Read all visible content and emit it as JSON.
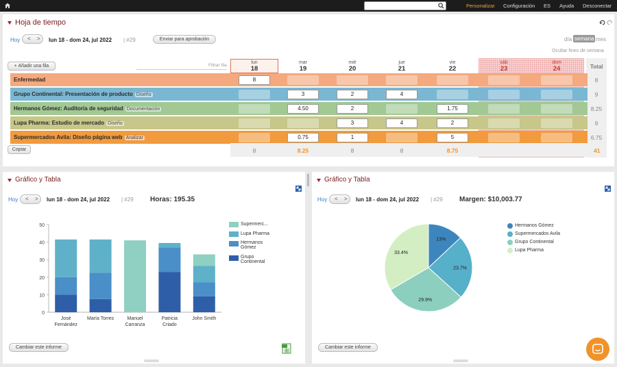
{
  "topbar": {
    "nav": [
      "Personalizar",
      "Configuración",
      "ES",
      "Ayuda",
      "Desconectar"
    ]
  },
  "colors": {
    "accent": "#e8a33d",
    "title": "#7a1b1b",
    "orange": "#f0932a"
  },
  "timesheet": {
    "title": "Hoja de tiempo",
    "today": "Hoy",
    "range": "lun 18 - dom 24, jul 2022",
    "week": "| #29",
    "submit": "Enviar para aprobación",
    "views": [
      "día",
      "semana",
      "mes"
    ],
    "hide_weekends": "Ocultar fines de semana",
    "add_row": "+ Añadir una fila",
    "filter": "Filtrar fila",
    "total_label": "Total",
    "copy": "Copiar",
    "days": [
      {
        "wd": "lun",
        "d": "18"
      },
      {
        "wd": "mar",
        "d": "19"
      },
      {
        "wd": "mié",
        "d": "20"
      },
      {
        "wd": "jue",
        "d": "21"
      },
      {
        "wd": "vie",
        "d": "22"
      },
      {
        "wd": "sáb",
        "d": "23"
      },
      {
        "wd": "dom",
        "d": "24"
      }
    ],
    "rows": [
      {
        "name": "Enfermedad",
        "tag": "",
        "color": "#f4a97e",
        "cells": [
          "8",
          "",
          "",
          "",
          "",
          "",
          ""
        ],
        "total": "8"
      },
      {
        "name": "Grupo Continental: Presentación de producto",
        "tag": "Diseño",
        "color": "#79b7d3",
        "cells": [
          "",
          "3",
          "2",
          "4",
          "",
          "",
          ""
        ],
        "total": "9"
      },
      {
        "name": "Hermanos Gómez: Auditoría de seguridad",
        "tag": "Documentación",
        "color": "#a2c894",
        "cells": [
          "",
          "4.50",
          "2",
          "",
          "1.75",
          "",
          ""
        ],
        "total": "8.25"
      },
      {
        "name": "Lupa Pharma: Estudio de mercado",
        "tag": "Diseño",
        "color": "#c6c788",
        "cells": [
          "",
          "",
          "3",
          "4",
          "2",
          "",
          ""
        ],
        "total": "9"
      },
      {
        "name": "Supermercados Avila: Diseño página web",
        "tag": "Analizar",
        "color": "#f19a3e",
        "cells": [
          "",
          "0.75",
          "1",
          "",
          "5",
          "",
          ""
        ],
        "total": "6.75"
      }
    ],
    "col_totals": [
      "8",
      "8.25",
      "8",
      "8",
      "8.75",
      "",
      ""
    ],
    "grand_total": "41"
  },
  "chart1": {
    "title": "Gráfico y Tabla",
    "today": "Hoy",
    "range": "lun 18 - dom 24, jul 2022",
    "week": "| #29",
    "hours": "Horas: 195.35",
    "change": "Cambiar este informe",
    "chart_data": {
      "type": "bar",
      "categories": [
        "José Fernández",
        "María Torres",
        "Manuel Carranza",
        "Patricia Criado",
        "John Smith"
      ],
      "ylim": [
        0,
        50
      ],
      "yticks": [
        "0",
        "10",
        "20",
        "30",
        "40",
        "50"
      ],
      "series": [
        {
          "name": "Grupo Continental",
          "color": "#2f5ea8",
          "values": [
            10,
            7.5,
            0,
            23,
            9
          ]
        },
        {
          "name": "Hermanos Gómez",
          "color": "#4a8fc7",
          "values": [
            10,
            15,
            0,
            14,
            8
          ]
        },
        {
          "name": "Lupa Pharma",
          "color": "#5eb1c9",
          "values": [
            21.5,
            19,
            0,
            2.5,
            9.5
          ]
        },
        {
          "name": "Supermercados Avila",
          "color": "#8fd0c2",
          "values": [
            0,
            0,
            41,
            0,
            6.5
          ]
        }
      ],
      "legend": [
        "Supermerc...",
        "Lupa Pharma",
        "Hermanos Gómez",
        "Grupo Continental"
      ]
    }
  },
  "chart2": {
    "title": "Gráfico y Tabla",
    "today": "Hoy",
    "range": "lun 18 - dom 24, jul 2022",
    "week": "| #29",
    "margin": "Margen: $10,003.77",
    "change": "Cambiar este informe",
    "chart_data": {
      "type": "pie",
      "slices": [
        {
          "name": "Hermanos Gómez",
          "value": 13,
          "label": "13%",
          "color": "#3d86bd"
        },
        {
          "name": "Supermercados Avila",
          "value": 23.7,
          "label": "23.7%",
          "color": "#56b0ca"
        },
        {
          "name": "Grupo Continental",
          "value": 29.9,
          "label": "29.9%",
          "color": "#8ccfbe"
        },
        {
          "name": "Lupa Pharma",
          "value": 33.4,
          "label": "33.4%",
          "color": "#d3eec3"
        }
      ]
    }
  }
}
